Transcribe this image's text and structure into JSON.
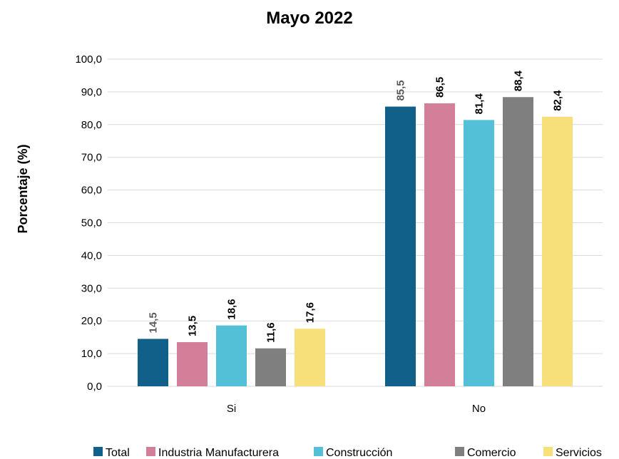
{
  "chart_data": {
    "type": "bar",
    "title": "Mayo 2022",
    "xlabel": "",
    "ylabel": "Porcentaje (%)",
    "ylim": [
      0,
      100
    ],
    "y_ticks": [
      "0,0",
      "10,0",
      "20,0",
      "30,0",
      "40,0",
      "50,0",
      "60,0",
      "70,0",
      "80,0",
      "90,0",
      "100,0"
    ],
    "categories": [
      "Si",
      "No"
    ],
    "series": [
      {
        "name": "Total",
        "color": "#11608A",
        "values": [
          14.5,
          85.5
        ],
        "labels": [
          "14,5",
          "85,5"
        ],
        "label_color": "#595959"
      },
      {
        "name": "Industria Manufacturera",
        "color": "#D47F9A",
        "values": [
          13.5,
          86.5
        ],
        "labels": [
          "13,5",
          "86,5"
        ],
        "label_color": "#000000"
      },
      {
        "name": "Construcción",
        "color": "#53C0D7",
        "values": [
          18.6,
          81.4
        ],
        "labels": [
          "18,6",
          "81,4"
        ],
        "label_color": "#000000"
      },
      {
        "name": "Comercio",
        "color": "#7F7F7F",
        "values": [
          11.6,
          88.4
        ],
        "labels": [
          "11,6",
          "88,4"
        ],
        "label_color": "#000000"
      },
      {
        "name": "Servicios",
        "color": "#F7E07A",
        "values": [
          17.6,
          82.4
        ],
        "labels": [
          "17,6",
          "82,4"
        ],
        "label_color": "#000000"
      }
    ],
    "grid": true,
    "legend_position": "bottom"
  }
}
